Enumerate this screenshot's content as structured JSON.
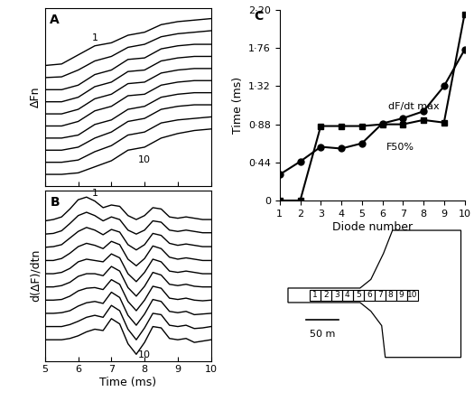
{
  "chart_data": [
    {
      "type": "line",
      "title": "A",
      "ylabel": "ΔFn",
      "xlim": [
        5,
        10
      ],
      "xticks": [
        5,
        6,
        7,
        8,
        9,
        10
      ],
      "ylim": [
        -0.8,
        11
      ],
      "yticks": [],
      "tick_labels": false,
      "color": "#000000",
      "x": [
        5,
        5.5,
        6,
        6.5,
        7,
        7.5,
        8,
        8.5,
        9,
        9.5,
        10
      ],
      "series": [
        {
          "name": "1",
          "values": [
            7.2,
            7.3,
            7.9,
            8.5,
            8.7,
            9.2,
            9.4,
            9.9,
            10.1,
            10.2,
            10.3
          ]
        },
        {
          "values": [
            6.4,
            6.45,
            6.9,
            7.5,
            7.8,
            8.4,
            8.6,
            9.1,
            9.3,
            9.4,
            9.5
          ]
        },
        {
          "values": [
            5.6,
            5.6,
            5.9,
            6.6,
            6.9,
            7.6,
            7.7,
            8.3,
            8.5,
            8.6,
            8.6
          ]
        },
        {
          "values": [
            4.8,
            4.8,
            5.1,
            5.8,
            6.1,
            6.8,
            6.9,
            7.5,
            7.7,
            7.8,
            7.8
          ]
        },
        {
          "values": [
            4.0,
            4.0,
            4.3,
            5.0,
            5.3,
            6.0,
            6.1,
            6.7,
            6.9,
            7.0,
            7.0
          ]
        },
        {
          "values": [
            3.2,
            3.2,
            3.5,
            4.2,
            4.5,
            5.2,
            5.3,
            5.9,
            6.1,
            6.2,
            6.2
          ]
        },
        {
          "values": [
            2.4,
            2.4,
            2.6,
            3.3,
            3.6,
            4.3,
            4.5,
            5.1,
            5.3,
            5.4,
            5.4
          ]
        },
        {
          "values": [
            1.6,
            1.6,
            1.8,
            2.4,
            2.8,
            3.5,
            3.7,
            4.3,
            4.5,
            4.6,
            4.6
          ]
        },
        {
          "values": [
            0.8,
            0.8,
            0.95,
            1.5,
            1.9,
            2.6,
            2.8,
            3.4,
            3.6,
            3.7,
            3.8
          ]
        },
        {
          "name": "10",
          "values": [
            0,
            0,
            0.1,
            0.5,
            0.9,
            1.6,
            1.8,
            2.4,
            2.7,
            2.9,
            3.0
          ]
        }
      ]
    },
    {
      "type": "line",
      "title": "B",
      "ylabel": "d(ΔF)/dtn",
      "xlabel": "Time (ms)",
      "xlim": [
        5,
        10
      ],
      "xticks": [
        5,
        6,
        7,
        8,
        9,
        10
      ],
      "ylim": [
        -1.6,
        11.3
      ],
      "yticks": [],
      "tick_labels": "x",
      "color": "#000000",
      "x": [
        5,
        5.25,
        5.5,
        5.75,
        6,
        6.25,
        6.5,
        6.75,
        7,
        7.25,
        7.5,
        7.75,
        8,
        8.25,
        8.5,
        8.75,
        9,
        9.25,
        9.5,
        9.75,
        10
      ],
      "series": [
        {
          "name": "1",
          "values": [
            9,
            9.1,
            9.3,
            9.9,
            10.6,
            10.8,
            10.5,
            10,
            10.2,
            10.1,
            9.4,
            9.1,
            9.4,
            10,
            9.9,
            9.3,
            9.2,
            9.3,
            9.2,
            9.1,
            9.1
          ]
        },
        {
          "values": [
            8,
            8.05,
            8.25,
            8.8,
            9.4,
            9.65,
            9.4,
            9,
            9.3,
            9.1,
            8.3,
            8,
            8.3,
            9,
            8.9,
            8.3,
            8.2,
            8.3,
            8.2,
            8.1,
            8.1
          ]
        },
        {
          "values": [
            7,
            7.05,
            7.2,
            7.7,
            8.2,
            8.5,
            8.3,
            7.95,
            8.35,
            8.15,
            7.2,
            6.8,
            7.2,
            8.05,
            7.9,
            7.3,
            7.15,
            7.25,
            7.15,
            7.05,
            7.05
          ]
        },
        {
          "values": [
            6,
            6,
            6.15,
            6.55,
            7.05,
            7.3,
            7.15,
            6.9,
            7.45,
            7.2,
            6.1,
            5.6,
            6.15,
            7.1,
            6.9,
            6.25,
            6.1,
            6.2,
            6.1,
            6,
            6
          ]
        },
        {
          "values": [
            5,
            5,
            5.1,
            5.4,
            5.9,
            6.1,
            6,
            5.9,
            6.5,
            6.2,
            5,
            4.4,
            5.1,
            6.1,
            5.9,
            5.2,
            5.1,
            5.2,
            5.1,
            5,
            5
          ]
        },
        {
          "values": [
            4,
            4,
            4.1,
            4.35,
            4.8,
            5,
            5,
            4.85,
            5.55,
            5.2,
            3.95,
            3.3,
            4.05,
            5.1,
            4.9,
            4.2,
            4.1,
            4.2,
            4.05,
            4,
            4
          ]
        },
        {
          "values": [
            3,
            3,
            3.05,
            3.3,
            3.7,
            3.9,
            3.95,
            3.8,
            4.55,
            4.2,
            2.9,
            2.2,
            3,
            4.05,
            3.9,
            3.15,
            3.05,
            3.15,
            3,
            2.95,
            3
          ]
        },
        {
          "values": [
            2,
            2,
            2.05,
            2.2,
            2.55,
            2.8,
            2.9,
            2.75,
            3.6,
            3.2,
            1.85,
            1.1,
            1.95,
            3.05,
            2.9,
            2.15,
            2.05,
            2.15,
            1.9,
            1.95,
            2
          ]
        },
        {
          "values": [
            1,
            1,
            1,
            1.15,
            1.4,
            1.7,
            1.85,
            1.7,
            2.6,
            2.2,
            0.8,
            0,
            0.9,
            2,
            1.9,
            1.1,
            1,
            1.1,
            0.85,
            0.9,
            1
          ]
        },
        {
          "name": "10",
          "values": [
            0,
            0,
            0,
            0.1,
            0.3,
            0.6,
            0.8,
            0.7,
            1.6,
            1.2,
            -0.3,
            -1.1,
            -0.2,
            1,
            0.9,
            0.1,
            0,
            0.1,
            -0.2,
            -0.1,
            0
          ]
        }
      ]
    },
    {
      "type": "line",
      "title": "C",
      "xlabel": "Diode number",
      "ylabel": "Time (ms)",
      "xlim": [
        1,
        10
      ],
      "xticks": [
        1,
        2,
        3,
        4,
        5,
        6,
        7,
        8,
        9,
        10
      ],
      "ylim": [
        0,
        2.2
      ],
      "yticks": [
        0,
        {
          "value": 0.44,
          "label": "0·44"
        },
        {
          "value": 0.88,
          "label": "0·88"
        },
        {
          "value": 1.32,
          "label": "1·32"
        },
        {
          "value": 1.76,
          "label": "1·76"
        },
        {
          "value": 2.2,
          "label": "2·20"
        }
      ],
      "x": [
        1,
        2,
        3,
        4,
        5,
        6,
        7,
        8,
        9,
        10
      ],
      "series": [
        {
          "color": "#000000",
          "marker": "square",
          "values": [
            0,
            0,
            0.86,
            0.86,
            0.86,
            0.88,
            0.88,
            0.93,
            0.9,
            2.15
          ]
        },
        {
          "color": "#000000",
          "marker": "circle",
          "values": [
            0.3,
            0.45,
            0.62,
            0.6,
            0.66,
            0.89,
            0.95,
            1.03,
            1.32,
            1.74
          ]
        }
      ],
      "annotations": [
        {
          "text": "dF/dt max",
          "x": 6.3,
          "y": 1.08
        },
        {
          "text": "F50%",
          "x": 6.2,
          "y": 0.62
        }
      ]
    }
  ],
  "diagram": {
    "diode_labels": [
      "1",
      "2",
      "3",
      "4",
      "5",
      "6",
      "7",
      "8",
      "9",
      "10"
    ],
    "scale_bar": "50 m"
  }
}
